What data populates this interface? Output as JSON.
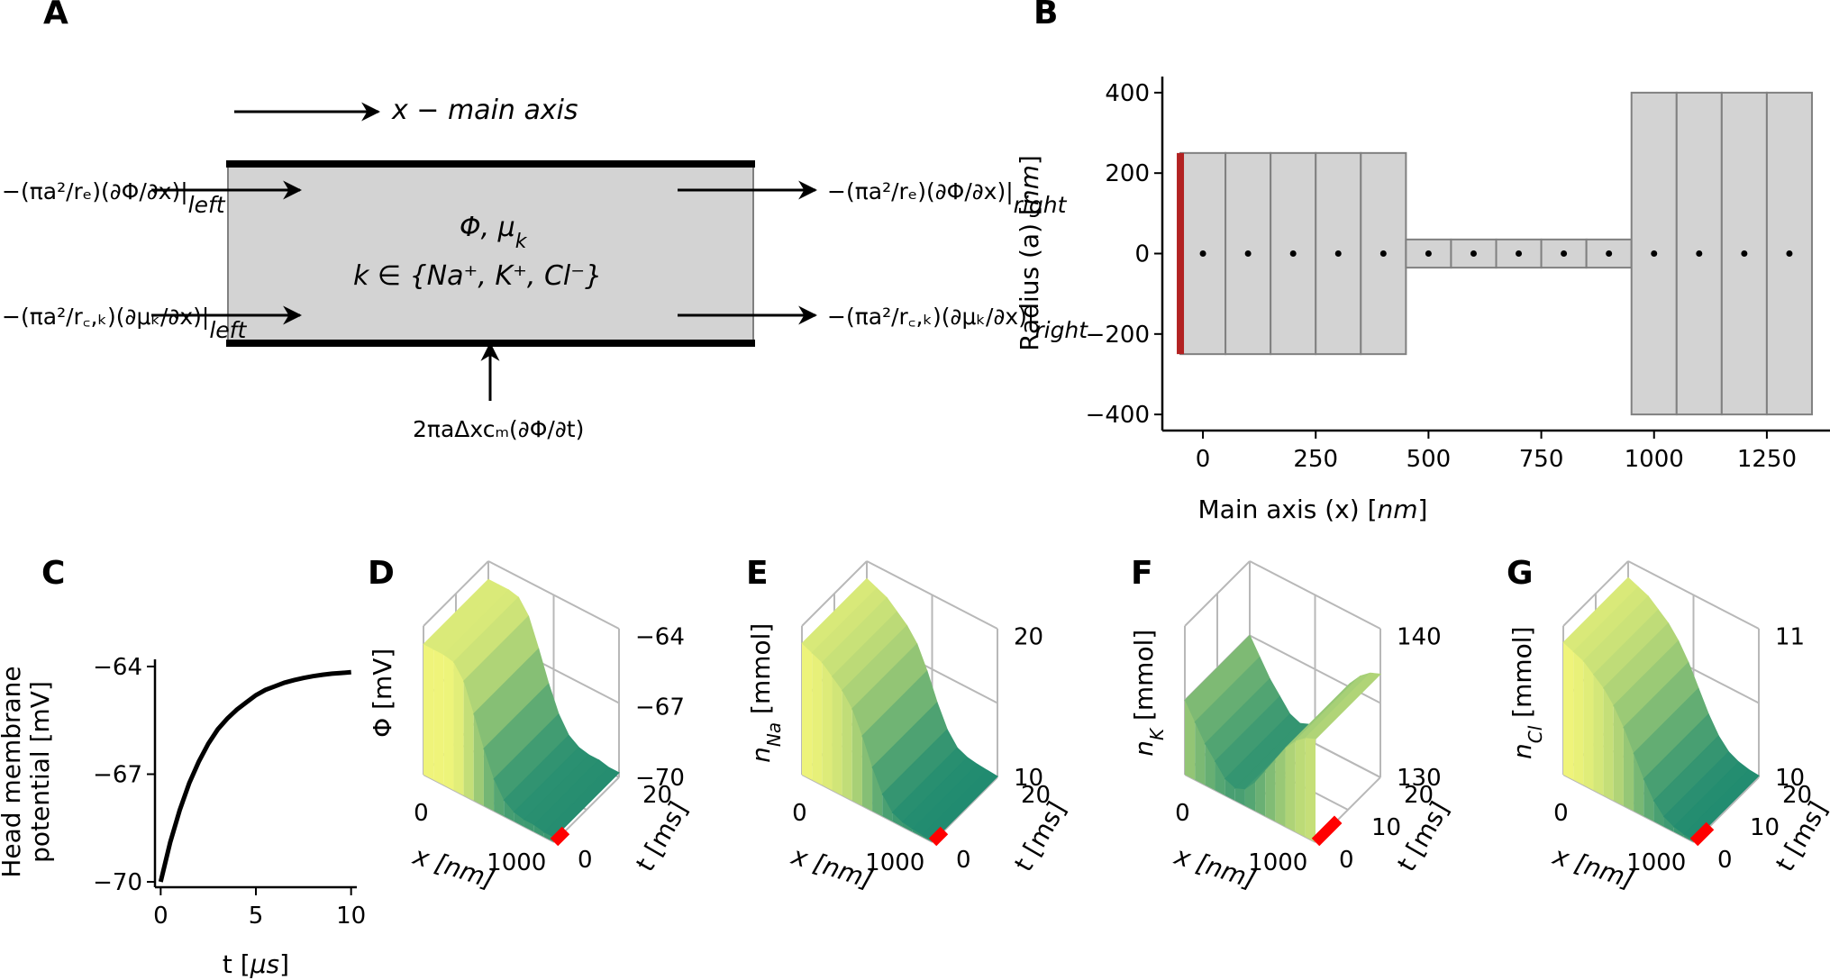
{
  "panels": {
    "A": {
      "letter": "A",
      "main_axis_label": "x − main axis",
      "center_line1": "Φ, μ",
      "center_line1_sub": "k",
      "center_line2": "k ∈ {Na⁺, K⁺, Cl⁻}",
      "left_top_flux": "−(πa²/rₑ)(∂Φ/∂x)|",
      "left_top_sub": "left",
      "left_bottom_flux": "−(πa²/r꜀,ₖ)(∂μₖ/∂x)|",
      "left_bottom_sub": "left",
      "right_top_flux": "−(πa²/rₑ)(∂Φ/∂x)|",
      "right_top_sub": "right",
      "right_bottom_flux": "−(πa²/r꜀,ₖ)(∂μₖ/∂x)|",
      "right_bottom_sub": "right",
      "membrane_flux": "2πaΔxcₘ(∂Φ/∂t)"
    },
    "B": {
      "letter": "B"
    },
    "C": {
      "letter": "C"
    },
    "D": {
      "letter": "D",
      "zlabel": "Φ [mV]",
      "xlabel": "x [nm]",
      "tlabel": "t [ms]"
    },
    "E": {
      "letter": "E",
      "zlabel": "n",
      "zlabel_sub": "Na",
      "zlabel_unit": " [mmol]",
      "xlabel": "x [nm]",
      "tlabel": "t [ms]"
    },
    "F": {
      "letter": "F",
      "zlabel": "n",
      "zlabel_sub": "K",
      "zlabel_unit": " [mmol]",
      "xlabel": "x [nm]",
      "tlabel": "t [ms]"
    },
    "G": {
      "letter": "G",
      "zlabel": "n",
      "zlabel_sub": "Cl",
      "zlabel_unit": " [mmol]",
      "xlabel": "x [nm]",
      "tlabel": "t [ms]"
    }
  },
  "colors": {
    "compartment_fill": "#d3d3d3",
    "compartment_edge": "#808080",
    "boundary_marker": "#b22222",
    "time_marker": "#ff0000",
    "surface_low": "#1f8a70",
    "surface_high": "#f4f77a"
  },
  "chart_data": [
    {
      "panel": "B",
      "type": "compartments",
      "xlabel": "Main axis (x)",
      "xlabel_unit": "nm",
      "ylabel": "Radius (a)",
      "ylabel_unit": "nm",
      "xlim": [
        -90,
        1390
      ],
      "ylim": [
        -440,
        440
      ],
      "xticks": [
        0,
        250,
        500,
        750,
        1000,
        1250
      ],
      "yticks": [
        -400,
        -200,
        0,
        200,
        400
      ],
      "ytick_labels": [
        "−400",
        "−200",
        "0",
        "200",
        "400"
      ],
      "boundary_x": -50,
      "boundary_radius": 250,
      "sections": [
        {
          "x_start": -50,
          "x_end": 450,
          "radius": 250,
          "n": 5
        },
        {
          "x_start": 450,
          "x_end": 950,
          "radius": 35,
          "n": 5
        },
        {
          "x_start": 950,
          "x_end": 1350,
          "radius": 400,
          "n": 4
        }
      ],
      "centers": [
        0,
        100,
        200,
        300,
        400,
        500,
        600,
        700,
        800,
        900,
        1000,
        1100,
        1200,
        1300
      ]
    },
    {
      "panel": "C",
      "type": "line",
      "xlabel": "t",
      "xlabel_unit": "μs",
      "ylabel_line1": "Head membrane",
      "ylabel_line2": "potential [mV]",
      "xlim": [
        -0.3,
        10.3
      ],
      "ylim": [
        -70.15,
        -63.8
      ],
      "xticks": [
        0,
        5,
        10
      ],
      "yticks": [
        -70,
        -67,
        -64
      ],
      "ytick_labels": [
        "−70",
        "−67",
        "−64"
      ],
      "series": [
        {
          "x": [
            0,
            0.5,
            1,
            1.5,
            2,
            2.5,
            3,
            3.5,
            4,
            4.5,
            5,
            5.5,
            6,
            6.5,
            7,
            7.5,
            8,
            8.5,
            9,
            9.5,
            10
          ],
          "y": [
            -70.0,
            -68.9,
            -68.0,
            -67.25,
            -66.65,
            -66.15,
            -65.75,
            -65.45,
            -65.2,
            -65.0,
            -64.8,
            -64.65,
            -64.55,
            -64.45,
            -64.38,
            -64.32,
            -64.27,
            -64.23,
            -64.2,
            -64.18,
            -64.16
          ]
        }
      ]
    },
    {
      "panel": "D",
      "type": "surface3d",
      "xticks": [
        "0",
        "1000"
      ],
      "tticks": [
        "0",
        "20"
      ],
      "zticks": [
        "−64",
        "−67",
        "−70"
      ],
      "z_from_x": [
        -64.3,
        -64.3,
        -64.3,
        -64.4,
        -65.0,
        -66.2,
        -67.5,
        -68.6,
        -69.3,
        -69.6,
        -69.7,
        -69.7,
        -69.8,
        -69.8
      ],
      "zlim": [
        -70,
        -63.5
      ],
      "time_marker_span": [
        0,
        0.18
      ]
    },
    {
      "panel": "E",
      "type": "surface3d",
      "xticks": [
        "0",
        "1000"
      ],
      "tticks": [
        "0",
        "20"
      ],
      "zticks": [
        "20",
        "10"
      ],
      "z_from_x": [
        25,
        24.5,
        24,
        23,
        22,
        20.5,
        18,
        15,
        12.5,
        11,
        10.5,
        10.3,
        10.2,
        10.1
      ],
      "zlim": [
        10,
        27
      ],
      "time_marker_span": [
        0,
        0.18
      ]
    },
    {
      "panel": "F",
      "type": "surface3d",
      "xticks": [
        "0",
        "1000"
      ],
      "tticks": [
        "0",
        "10",
        "20"
      ],
      "zticks": [
        "140",
        "130"
      ],
      "z_from_x": [
        133,
        131,
        129,
        127.5,
        126,
        125.5,
        126,
        127.5,
        129.5,
        131.5,
        133.5,
        135,
        136,
        136.5
      ],
      "zlim": [
        124,
        142
      ],
      "time_marker_span": [
        0,
        0.35
      ]
    },
    {
      "panel": "G",
      "type": "surface3d",
      "xticks": [
        "0",
        "1000"
      ],
      "tticks": [
        "0",
        "10",
        "20"
      ],
      "zticks": [
        "11",
        "10"
      ],
      "z_from_x": [
        11.6,
        11.55,
        11.5,
        11.4,
        11.3,
        11.15,
        10.95,
        10.7,
        10.45,
        10.25,
        10.12,
        10.06,
        10.03,
        10.02
      ],
      "zlim": [
        10,
        11.8
      ],
      "time_marker_span": [
        0,
        0.25
      ]
    }
  ]
}
